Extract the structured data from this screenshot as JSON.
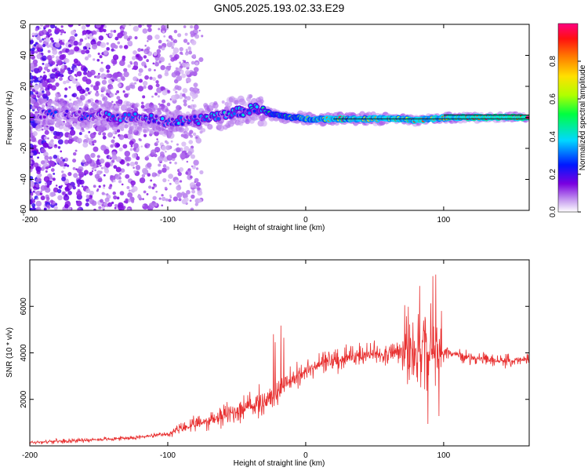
{
  "figure": {
    "title": "GN05.2025.193.02.33.E29"
  },
  "chart_data": [
    {
      "type": "heatmap",
      "xlabel": "Height of straight line (km)",
      "ylabel": "Frequency (Hz)",
      "xlim": [
        -200,
        162
      ],
      "ylim": [
        -60,
        60
      ],
      "x_ticks": [
        -200,
        -100,
        0,
        100
      ],
      "y_ticks": [
        -60,
        -40,
        -20,
        0,
        20,
        40,
        60
      ],
      "grid": false,
      "ridge": {
        "x": [
          -190,
          -150,
          -120,
          -100,
          -80,
          -60,
          -45,
          -35,
          -25,
          -10,
          0,
          20,
          50,
          70,
          80,
          90,
          110,
          162
        ],
        "y": [
          2,
          1,
          0,
          -3,
          -2,
          2,
          4,
          6,
          2,
          0,
          -1,
          -1,
          -1,
          -1,
          -2,
          -1,
          0,
          0
        ]
      },
      "colorbar": {
        "label": "Normalized spectral amplitude",
        "range": [
          0,
          1
        ],
        "ticks": [
          0.0,
          0.2,
          0.4,
          0.6,
          0.8
        ]
      }
    },
    {
      "type": "line",
      "xlabel": "Height of straight line (km)",
      "ylabel": "SNR (10 * v/v)",
      "xlim": [
        -200,
        162
      ],
      "ylim": [
        0,
        8000
      ],
      "x_ticks": [
        -200,
        -100,
        0,
        100
      ],
      "y_ticks": [
        2000,
        4000,
        6000
      ],
      "grid": false,
      "series": [
        {
          "color": "#e83030",
          "x": [
            -200,
            -180,
            -160,
            -140,
            -120,
            -100,
            -90,
            -80,
            -70,
            -60,
            -50,
            -40,
            -30,
            -20,
            -10,
            0,
            10,
            20,
            30,
            40,
            50,
            60,
            70,
            75,
            80,
            85,
            90,
            95,
            100,
            110,
            120,
            130,
            140,
            150,
            162
          ],
          "y": [
            150,
            200,
            250,
            300,
            380,
            500,
            750,
            900,
            1100,
            1300,
            1500,
            1700,
            1900,
            2300,
            2900,
            3200,
            3500,
            3700,
            3800,
            3900,
            3950,
            4000,
            4050,
            4100,
            4100,
            4000,
            3900,
            4000,
            4100,
            3900,
            3800,
            3700,
            3650,
            3650,
            3700
          ]
        }
      ]
    }
  ]
}
